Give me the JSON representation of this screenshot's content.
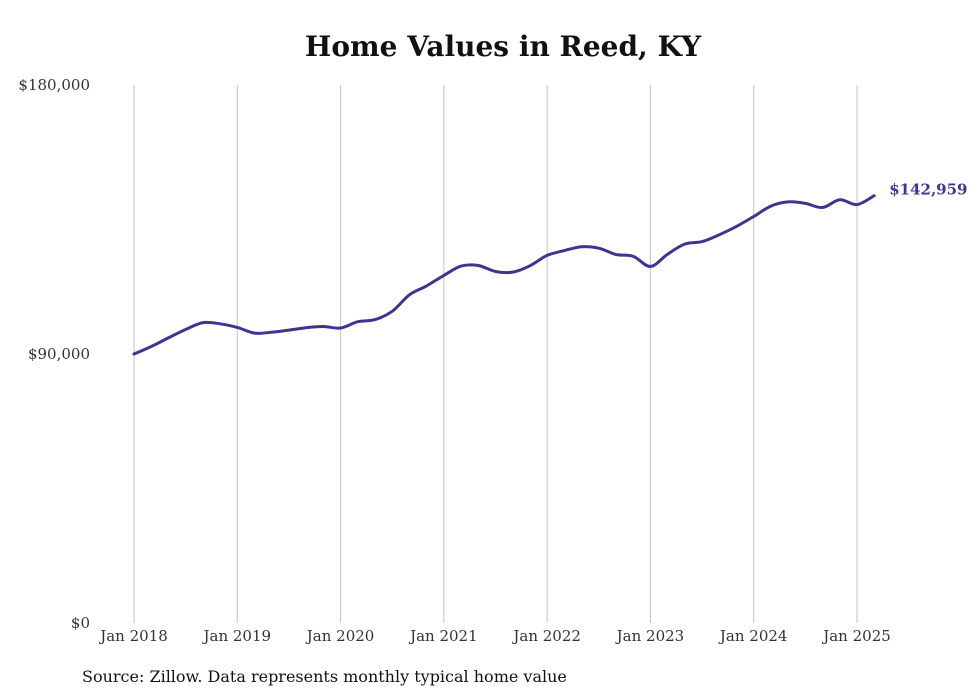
{
  "chart_data": {
    "type": "line",
    "title": "Home Values in Reed, KY",
    "xlabel": "",
    "ylabel": "",
    "ylim": [
      0,
      180000
    ],
    "yticks": [
      {
        "value": 0,
        "label": "$0"
      },
      {
        "value": 90000,
        "label": "$90,000"
      },
      {
        "value": 180000,
        "label": "$180,000"
      }
    ],
    "xticks": [
      {
        "value": 2018,
        "label": "Jan 2018"
      },
      {
        "value": 2019,
        "label": "Jan 2019"
      },
      {
        "value": 2020,
        "label": "Jan 2020"
      },
      {
        "value": 2021,
        "label": "Jan 2021"
      },
      {
        "value": 2022,
        "label": "Jan 2022"
      },
      {
        "value": 2023,
        "label": "Jan 2023"
      },
      {
        "value": 2024,
        "label": "Jan 2024"
      },
      {
        "value": 2025,
        "label": "Jan 2025"
      }
    ],
    "xlim": [
      2018,
      2025.167
    ],
    "grid": {
      "vertical": true,
      "horizontal": false
    },
    "series_color": "#3d3590",
    "end_label": "$142,959",
    "series": [
      {
        "name": "",
        "x": [
          "2018-01",
          "2018-03",
          "2018-05",
          "2018-07",
          "2018-09",
          "2018-11",
          "2019-01",
          "2019-03",
          "2019-05",
          "2019-07",
          "2019-09",
          "2019-11",
          "2020-01",
          "2020-03",
          "2020-05",
          "2020-07",
          "2020-09",
          "2020-11",
          "2021-01",
          "2021-03",
          "2021-05",
          "2021-07",
          "2021-09",
          "2021-11",
          "2022-01",
          "2022-03",
          "2022-05",
          "2022-07",
          "2022-09",
          "2022-11",
          "2023-01",
          "2023-03",
          "2023-05",
          "2023-07",
          "2023-09",
          "2023-11",
          "2024-01",
          "2024-03",
          "2024-05",
          "2024-07",
          "2024-09",
          "2024-11",
          "2025-01",
          "2025-03"
        ],
        "values": [
          90000,
          92500,
          95400,
          98200,
          100500,
          100100,
          98900,
          97000,
          97300,
          98000,
          98800,
          99200,
          98700,
          100800,
          101500,
          104300,
          109800,
          112800,
          116300,
          119400,
          119600,
          117600,
          117400,
          119500,
          123000,
          124600,
          125900,
          125400,
          123300,
          122700,
          119300,
          123400,
          126800,
          127600,
          129900,
          132700,
          136000,
          139500,
          140900,
          140400,
          139000,
          141600,
          140000,
          142959
        ]
      }
    ]
  },
  "source_note": "Source: Zillow. Data represents monthly typical home value"
}
